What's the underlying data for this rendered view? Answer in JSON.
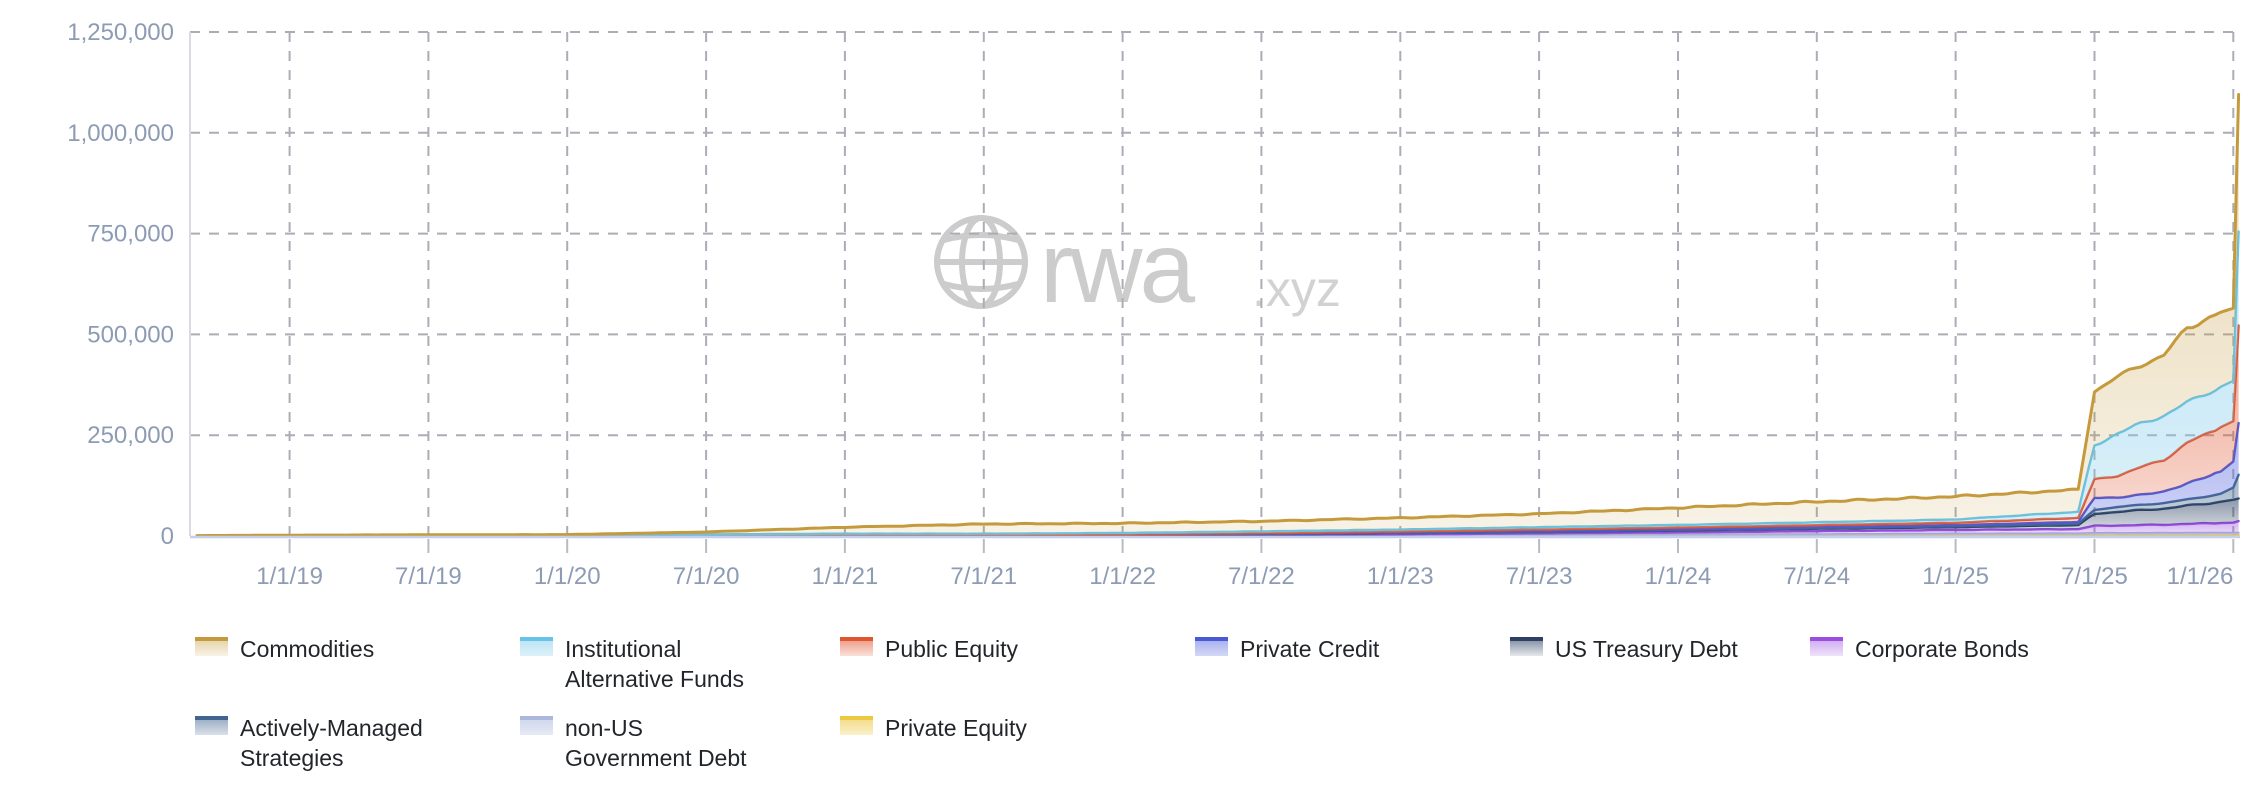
{
  "watermark": {
    "brand": "rwa",
    "tld": ".xyz"
  },
  "chart_data": {
    "type": "area",
    "stacked": true,
    "title": "",
    "legend_position": "bottom",
    "grid": "dashed",
    "ylim": [
      0,
      1250000
    ],
    "y_ticks": [
      {
        "label": "0",
        "value": 0
      },
      {
        "label": "250,000",
        "value": 250000
      },
      {
        "label": "500,000",
        "value": 500000
      },
      {
        "label": "750,000",
        "value": 750000
      },
      {
        "label": "1,000,000",
        "value": 1000000
      },
      {
        "label": "1,250,000",
        "value": 1250000
      }
    ],
    "x_ticks": [
      {
        "label": "1/1/19",
        "date": "2019-01-01"
      },
      {
        "label": "7/1/19",
        "date": "2019-07-01"
      },
      {
        "label": "1/1/20",
        "date": "2020-01-01"
      },
      {
        "label": "7/1/20",
        "date": "2020-07-01"
      },
      {
        "label": "1/1/21",
        "date": "2021-01-01"
      },
      {
        "label": "7/1/21",
        "date": "2021-07-01"
      },
      {
        "label": "1/1/22",
        "date": "2022-01-01"
      },
      {
        "label": "7/1/22",
        "date": "2022-07-01"
      },
      {
        "label": "1/1/23",
        "date": "2023-01-01"
      },
      {
        "label": "7/1/23",
        "date": "2023-07-01"
      },
      {
        "label": "1/1/24",
        "date": "2024-01-01"
      },
      {
        "label": "7/1/24",
        "date": "2024-07-01"
      },
      {
        "label": "1/1/25",
        "date": "2025-01-01"
      },
      {
        "label": "7/1/25",
        "date": "2025-07-01"
      },
      {
        "label": "1/1/26",
        "date": "2026-01-01"
      }
    ],
    "dates": [
      "2018-09-01",
      "2019-01-01",
      "2019-07-01",
      "2020-01-01",
      "2020-07-01",
      "2021-01-01",
      "2021-07-01",
      "2022-01-01",
      "2022-07-01",
      "2023-01-01",
      "2023-07-01",
      "2024-01-01",
      "2024-07-01",
      "2025-01-01",
      "2025-06-10",
      "2025-07-01",
      "2025-08-01",
      "2025-10-01",
      "2025-11-01",
      "2025-12-15",
      "2026-01-01",
      "2026-01-08"
    ],
    "stack_order": "bottom-to-top",
    "series": [
      {
        "name": "Private Equity",
        "color": "#edc843",
        "fill_top": "rgba(237,200,67,0.6)",
        "fill_bottom": "rgba(237,200,67,0.28)",
        "values": [
          0,
          0,
          0,
          0,
          0,
          0,
          0,
          0,
          0,
          0,
          0,
          500,
          500,
          1000,
          1000,
          1000,
          1000,
          1200,
          1300,
          1400,
          1500,
          2500
        ]
      },
      {
        "name": "non-US Government Debt",
        "color": "#aab8dc",
        "fill_top": "rgba(170,184,220,0.55)",
        "fill_bottom": "rgba(170,184,220,0.3)",
        "values": [
          0,
          0,
          0,
          0,
          0,
          0,
          0,
          500,
          1500,
          2500,
          3000,
          3500,
          3500,
          4500,
          5000,
          6000,
          6000,
          6000,
          6100,
          6200,
          6300,
          5500
        ]
      },
      {
        "name": "Corporate Bonds",
        "color": "#9a4ee0",
        "fill_top": "rgba(154,78,224,0.45)",
        "fill_bottom": "rgba(154,78,224,0.16)",
        "values": [
          0,
          0,
          0,
          0,
          0,
          0,
          0,
          500,
          500,
          1500,
          3500,
          5000,
          8000,
          9500,
          11000,
          18000,
          19000,
          20800,
          22600,
          24400,
          25200,
          29000
        ]
      },
      {
        "name": "US Treasury Debt",
        "color": "#2c4163",
        "fill_top": "rgba(44,65,99,0.55)",
        "fill_bottom": "rgba(44,65,99,0.12)",
        "values": [
          0,
          0,
          0,
          0,
          0,
          0,
          700,
          1000,
          2000,
          3000,
          3500,
          5000,
          6000,
          7000,
          10000,
          30000,
          34000,
          40000,
          45000,
          53000,
          57000,
          56000
        ]
      },
      {
        "name": "Actively-Managed Strategies",
        "color": "#41658f",
        "fill_top": "rgba(65,101,143,0.5)",
        "fill_bottom": "rgba(65,101,143,0.2)",
        "values": [
          0,
          0,
          0,
          0,
          0,
          0,
          0,
          0,
          0,
          0,
          0,
          1000,
          1000,
          2000,
          3000,
          10000,
          12000,
          14000,
          15000,
          20000,
          30000,
          59000
        ]
      },
      {
        "name": "Private Credit",
        "color": "#4a5ad6",
        "fill_top": "rgba(88,104,222,0.5)",
        "fill_bottom": "rgba(88,104,222,0.26)",
        "values": [
          0,
          0,
          0,
          0,
          0,
          300,
          500,
          1000,
          1500,
          2000,
          3000,
          2000,
          3000,
          3000,
          5000,
          30000,
          23000,
          28000,
          40000,
          55000,
          65000,
          128000
        ]
      },
      {
        "name": "Public Equity",
        "color": "#e0552f",
        "fill_top": "rgba(224,85,47,0.55)",
        "fill_bottom": "rgba(224,85,47,0.18)",
        "values": [
          0,
          0,
          0,
          0,
          0,
          500,
          500,
          1000,
          1500,
          2000,
          3000,
          4000,
          5000,
          6000,
          10000,
          45000,
          55000,
          80000,
          100000,
          110000,
          100000,
          242000
        ]
      },
      {
        "name": "Institutional Alternative Funds",
        "color": "#66c4e8",
        "fill_top": "rgba(128,203,235,0.5)",
        "fill_bottom": "rgba(128,203,235,0.28)",
        "values": [
          1000,
          2000,
          3000,
          3500,
          4000,
          5000,
          4000,
          3500,
          4500,
          5000,
          6000,
          6500,
          7000,
          8000,
          15000,
          85000,
          105000,
          110000,
          100000,
          100000,
          100000,
          233000
        ]
      },
      {
        "name": "Commodities",
        "color": "#c49a3c",
        "fill_top": "rgba(196,154,60,0.42)",
        "fill_bottom": "rgba(196,154,60,0.12)",
        "values": [
          0,
          0,
          0,
          0,
          6000,
          16000,
          24000,
          24000,
          25000,
          29000,
          33000,
          42500,
          51000,
          57000,
          55000,
          135000,
          140000,
          150000,
          185000,
          185000,
          180000,
          340000
        ]
      }
    ],
    "legend": {
      "items": [
        {
          "series_index": 8,
          "lines": [
            "Commodities"
          ]
        },
        {
          "series_index": 7,
          "lines": [
            "Institutional",
            "Alternative Funds"
          ]
        },
        {
          "series_index": 6,
          "lines": [
            "Public Equity"
          ]
        },
        {
          "series_index": 5,
          "lines": [
            "Private Credit"
          ]
        },
        {
          "series_index": 3,
          "lines": [
            "US Treasury Debt"
          ]
        },
        {
          "series_index": 2,
          "lines": [
            "Corporate Bonds"
          ]
        },
        {
          "series_index": 4,
          "lines": [
            "Actively-Managed",
            "Strategies"
          ]
        },
        {
          "series_index": 1,
          "lines": [
            "non-US",
            "Government Debt"
          ]
        },
        {
          "series_index": 0,
          "lines": [
            "Private Equity"
          ]
        }
      ]
    }
  }
}
